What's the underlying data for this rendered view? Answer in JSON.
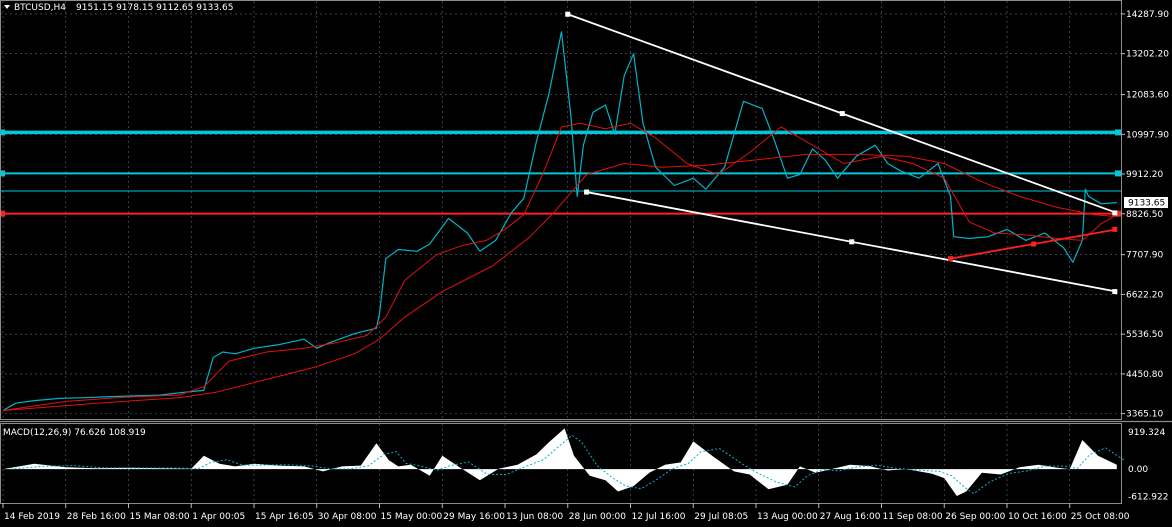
{
  "chart_data": {
    "type": "line",
    "symbol_label": "BTCUSD,H4",
    "ohlc_label": "9151.15 9178.15 9112.65 9133.65",
    "current_price_label": "9133.65",
    "price_axis": {
      "ticks": [
        "14287.90",
        "13202.20",
        "12083.60",
        "10997.90",
        "9912.20",
        "8826.50",
        "7707.90",
        "6622.20",
        "5536.50",
        "4450.80",
        "3365.10"
      ],
      "range": [
        3300,
        14450
      ]
    },
    "time_axis": {
      "labels": [
        "14 Feb 2019",
        "28 Feb 16:00",
        "15 Mar 08:00",
        "1 Apr 00:05",
        "15 Apr 16:05",
        "30 Apr 08:00",
        "15 May 00:00",
        "29 May 16:00",
        "13 Jun 08:00",
        "28 Jun 00:00",
        "12 Jul 16:00",
        "29 Jul 08:05",
        "13 Aug 00:00",
        "27 Aug 16:00",
        "11 Sep 08:00",
        "26 Sep 00:00",
        "10 Oct 16:00",
        "25 Oct 08:00"
      ],
      "range": [
        0,
        17.75
      ]
    },
    "series": [
      {
        "role": "price",
        "color": "#00b4c8",
        "x": [
          0,
          0.2,
          0.5,
          0.9,
          1.3,
          1.7,
          2.1,
          2.5,
          2.9,
          3.2,
          3.35,
          3.5,
          3.7,
          4.0,
          4.4,
          4.8,
          5.0,
          5.2,
          5.6,
          5.95,
          6.0,
          6.1,
          6.3,
          6.6,
          6.8,
          7.1,
          7.4,
          7.6,
          7.85,
          8.1,
          8.3,
          8.5,
          8.7,
          8.9,
          9.05,
          9.15,
          9.25,
          9.4,
          9.6,
          9.75,
          9.9,
          10.05,
          10.2,
          10.4,
          10.7,
          11.0,
          11.2,
          11.5,
          11.8,
          12.1,
          12.3,
          12.5,
          12.7,
          12.9,
          13.1,
          13.3,
          13.6,
          13.9,
          14.1,
          14.3,
          14.6,
          14.9,
          15.1,
          15.15,
          15.4,
          15.7,
          16.0,
          16.3,
          16.6,
          16.9,
          17.05,
          17.2,
          17.25,
          17.3,
          17.5,
          17.75
        ],
        "y": [
          3450,
          3650,
          3720,
          3780,
          3800,
          3830,
          3850,
          3870,
          3950,
          4000,
          4900,
          5050,
          5000,
          5150,
          5250,
          5400,
          5150,
          5300,
          5550,
          5700,
          6100,
          7600,
          7850,
          7800,
          8000,
          8700,
          8300,
          7800,
          8100,
          8850,
          9250,
          10800,
          12100,
          13800,
          11500,
          9300,
          10700,
          11600,
          11800,
          11000,
          12600,
          13200,
          11300,
          10100,
          9600,
          9800,
          9500,
          10100,
          11900,
          11700,
          10800,
          9800,
          9900,
          10600,
          10300,
          9800,
          10400,
          10700,
          10200,
          10000,
          9800,
          10200,
          9300,
          8200,
          8150,
          8200,
          8400,
          8100,
          8300,
          7900,
          7500,
          8100,
          9500,
          9300,
          9100,
          9133
        ]
      },
      {
        "role": "moving-average-fast",
        "color": "#e01010",
        "x": [
          0,
          1.0,
          2.0,
          2.8,
          3.2,
          3.6,
          4.2,
          4.8,
          5.3,
          5.8,
          6.1,
          6.4,
          6.9,
          7.3,
          7.7,
          8.0,
          8.3,
          8.6,
          8.9,
          9.2,
          9.6,
          10.0,
          10.4,
          10.9,
          11.4,
          11.9,
          12.4,
          12.9,
          13.4,
          14.0,
          14.5,
          15.0,
          15.4,
          15.8,
          16.3,
          16.8,
          17.2,
          17.5,
          17.75
        ],
        "y": [
          3450,
          3700,
          3820,
          3870,
          4100,
          4800,
          5050,
          5150,
          5300,
          5500,
          6000,
          7000,
          7700,
          7950,
          8100,
          8400,
          8800,
          9900,
          11200,
          11300,
          11150,
          11300,
          10900,
          10200,
          9900,
          10500,
          11200,
          10700,
          10200,
          10400,
          10200,
          9800,
          8600,
          8300,
          8250,
          8150,
          8100,
          8550,
          8800
        ]
      },
      {
        "role": "moving-average-slow",
        "color": "#e01010",
        "x": [
          0,
          1.5,
          2.8,
          3.4,
          4.2,
          5.0,
          5.6,
          6.0,
          6.4,
          7.0,
          7.8,
          8.4,
          8.8,
          9.3,
          9.9,
          10.5,
          11.2,
          12.0,
          12.8,
          13.6,
          14.4,
          15.0,
          15.6,
          16.2,
          16.8,
          17.4,
          17.75
        ],
        "y": [
          3450,
          3650,
          3800,
          3950,
          4300,
          4650,
          5000,
          5400,
          6000,
          6700,
          7400,
          8200,
          8900,
          9900,
          10200,
          10100,
          10150,
          10300,
          10450,
          10450,
          10400,
          10200,
          9700,
          9300,
          9000,
          8800,
          8750
        ]
      }
    ],
    "horizontal_levels": [
      {
        "price": 11050,
        "color": "#00c8d8",
        "style": "thick"
      },
      {
        "price": 9930,
        "color": "#00c8d8",
        "style": "medium"
      },
      {
        "price": 9450,
        "color": "#00c8d8",
        "style": "thin"
      },
      {
        "price": 8830,
        "color": "#ff2020",
        "style": "medium"
      }
    ],
    "trendlines": [
      {
        "x1": 9.0,
        "y1": 14280,
        "x2": 17.75,
        "y2": 8850,
        "color": "#ffffff"
      },
      {
        "x1": 9.3,
        "y1": 9420,
        "x2": 17.75,
        "y2": 6700,
        "color": "#ffffff"
      },
      {
        "x1": 15.1,
        "y1": 7600,
        "x2": 17.75,
        "y2": 8400,
        "color": "#ff2020"
      }
    ],
    "macd": {
      "label": "MACD(12,26,9) 76.626 108.919",
      "ticks": [
        "919.324",
        "0.00",
        "-612.922"
      ],
      "range": [
        -690,
        919.324
      ],
      "bar_color": "#ffffff",
      "signal_color": "#00b4c8",
      "x": [
        0,
        0.5,
        1.0,
        1.5,
        2.0,
        2.5,
        3.0,
        3.2,
        3.45,
        3.7,
        4.0,
        4.4,
        4.8,
        5.1,
        5.4,
        5.7,
        5.95,
        6.15,
        6.3,
        6.5,
        6.8,
        7.0,
        7.3,
        7.6,
        7.9,
        8.2,
        8.5,
        8.7,
        8.95,
        9.1,
        9.35,
        9.6,
        9.8,
        10.05,
        10.3,
        10.55,
        10.8,
        11.0,
        11.3,
        11.65,
        11.9,
        12.2,
        12.5,
        12.7,
        12.95,
        13.2,
        13.5,
        13.8,
        14.1,
        14.4,
        14.8,
        15.0,
        15.2,
        15.35,
        15.6,
        15.9,
        16.2,
        16.5,
        16.8,
        17.0,
        17.2,
        17.45,
        17.75
      ],
      "y": [
        0,
        120,
        40,
        20,
        30,
        20,
        10,
        300,
        120,
        60,
        120,
        80,
        60,
        -50,
        60,
        80,
        580,
        200,
        60,
        100,
        -150,
        300,
        20,
        -250,
        10,
        100,
        330,
        600,
        910,
        300,
        -150,
        -250,
        -500,
        -380,
        -80,
        100,
        150,
        620,
        300,
        -50,
        -120,
        -450,
        -350,
        60,
        -80,
        0,
        100,
        70,
        -30,
        0,
        -100,
        -200,
        -600,
        -500,
        -80,
        -120,
        40,
        100,
        30,
        0,
        650,
        300,
        100
      ]
    }
  }
}
